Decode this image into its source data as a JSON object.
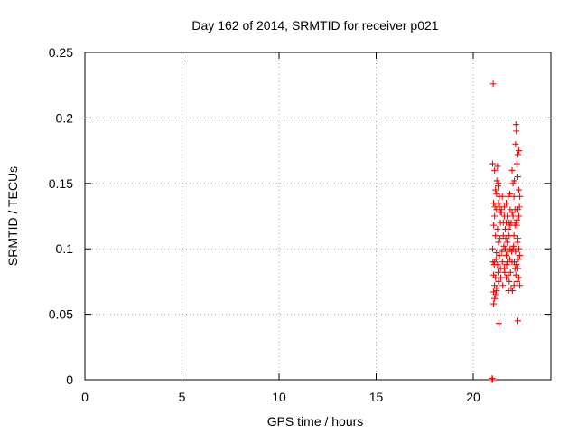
{
  "chart_data": {
    "type": "scatter",
    "title": "Day 162 of 2014, SRMTID for receiver p021",
    "xlabel": "GPS time / hours",
    "ylabel": "SRMTID / TECUs",
    "xlim": [
      0,
      24
    ],
    "ylim": [
      0,
      0.25
    ],
    "xticks": [
      0,
      5,
      10,
      15,
      20
    ],
    "xtick_labels": [
      "0",
      "5",
      "10",
      "15",
      "20"
    ],
    "yticks": [
      0,
      0.05,
      0.1,
      0.15,
      0.2,
      0.25
    ],
    "ytick_labels": [
      "0",
      "0.05",
      "0.1",
      "0.15",
      "0.2",
      "0.25"
    ],
    "grid": true,
    "marker": "+",
    "marker_color": "#ff0000",
    "series": [
      {
        "points": [
          [
            20.98,
            0.001
          ],
          [
            21.0,
            0.0
          ],
          [
            20.97,
            0.0
          ],
          [
            21.03,
            0.226
          ],
          [
            21.0,
            0.165
          ],
          [
            21.1,
            0.16
          ],
          [
            21.25,
            0.163
          ],
          [
            21.05,
            0.135
          ],
          [
            21.15,
            0.145
          ],
          [
            21.3,
            0.15
          ],
          [
            21.35,
            0.14
          ],
          [
            21.2,
            0.13
          ],
          [
            21.1,
            0.125
          ],
          [
            21.05,
            0.118
          ],
          [
            21.25,
            0.115
          ],
          [
            21.4,
            0.12
          ],
          [
            21.15,
            0.11
          ],
          [
            21.3,
            0.105
          ],
          [
            21.0,
            0.1
          ],
          [
            21.2,
            0.097
          ],
          [
            21.35,
            0.095
          ],
          [
            21.1,
            0.09
          ],
          [
            21.25,
            0.088
          ],
          [
            21.4,
            0.085
          ],
          [
            21.05,
            0.08
          ],
          [
            21.15,
            0.078
          ],
          [
            21.3,
            0.075
          ],
          [
            21.1,
            0.072
          ],
          [
            21.2,
            0.07
          ],
          [
            21.05,
            0.067
          ],
          [
            21.15,
            0.065
          ],
          [
            21.1,
            0.062
          ],
          [
            21.05,
            0.058
          ],
          [
            21.2,
            0.068
          ],
          [
            21.32,
            0.043
          ],
          [
            21.45,
            0.13
          ],
          [
            21.5,
            0.14
          ],
          [
            21.6,
            0.125
          ],
          [
            21.55,
            0.11
          ],
          [
            21.65,
            0.1
          ],
          [
            21.5,
            0.09
          ],
          [
            21.6,
            0.085
          ],
          [
            21.7,
            0.095
          ],
          [
            21.75,
            0.105
          ],
          [
            21.8,
            0.115
          ],
          [
            21.85,
            0.12
          ],
          [
            21.7,
            0.135
          ],
          [
            21.8,
            0.14
          ],
          [
            21.9,
            0.13
          ],
          [
            21.95,
            0.12
          ],
          [
            21.85,
            0.11
          ],
          [
            21.9,
            0.1
          ],
          [
            21.75,
            0.09
          ],
          [
            21.8,
            0.08
          ],
          [
            21.7,
            0.078
          ],
          [
            21.85,
            0.075
          ],
          [
            21.95,
            0.07
          ],
          [
            22.0,
            0.16
          ],
          [
            22.05,
            0.15
          ],
          [
            22.1,
            0.14
          ],
          [
            22.15,
            0.13
          ],
          [
            22.2,
            0.12
          ],
          [
            22.1,
            0.11
          ],
          [
            22.05,
            0.1
          ],
          [
            22.0,
            0.09
          ],
          [
            22.15,
            0.085
          ],
          [
            22.2,
            0.08
          ],
          [
            22.25,
            0.075
          ],
          [
            22.1,
            0.072
          ],
          [
            22.2,
            0.195
          ],
          [
            22.22,
            0.19
          ],
          [
            22.18,
            0.18
          ],
          [
            22.3,
            0.172
          ],
          [
            22.35,
            0.175
          ],
          [
            22.25,
            0.165
          ],
          [
            22.3,
            0.155
          ],
          [
            22.35,
            0.145
          ],
          [
            22.4,
            0.14
          ],
          [
            22.3,
            0.13
          ],
          [
            22.35,
            0.125
          ],
          [
            22.25,
            0.118
          ],
          [
            22.3,
            0.108
          ],
          [
            22.35,
            0.1
          ],
          [
            22.4,
            0.095
          ],
          [
            22.3,
            0.085
          ],
          [
            22.35,
            0.078
          ],
          [
            22.4,
            0.072
          ],
          [
            22.3,
            0.045
          ],
          [
            21.3,
            0.135
          ],
          [
            21.35,
            0.132
          ],
          [
            21.45,
            0.128
          ],
          [
            21.55,
            0.12
          ],
          [
            21.65,
            0.115
          ],
          [
            21.75,
            0.125
          ],
          [
            21.9,
            0.118
          ],
          [
            22.05,
            0.125
          ],
          [
            22.15,
            0.118
          ],
          [
            21.2,
            0.142
          ],
          [
            21.38,
            0.108
          ],
          [
            21.48,
            0.098
          ],
          [
            21.58,
            0.102
          ],
          [
            21.68,
            0.108
          ],
          [
            21.78,
            0.098
          ],
          [
            21.88,
            0.092
          ],
          [
            21.98,
            0.098
          ],
          [
            22.08,
            0.102
          ],
          [
            22.18,
            0.098
          ],
          [
            22.28,
            0.105
          ],
          [
            21.02,
            0.09
          ],
          [
            21.08,
            0.088
          ],
          [
            21.18,
            0.092
          ],
          [
            21.28,
            0.082
          ],
          [
            21.42,
            0.078
          ],
          [
            21.52,
            0.072
          ],
          [
            21.62,
            0.082
          ],
          [
            21.72,
            0.088
          ],
          [
            21.82,
            0.068
          ],
          [
            21.92,
            0.082
          ],
          [
            22.02,
            0.068
          ],
          [
            22.12,
            0.09
          ],
          [
            22.22,
            0.088
          ],
          [
            22.32,
            0.092
          ],
          [
            21.22,
            0.152
          ],
          [
            21.28,
            0.148
          ],
          [
            21.6,
            0.132
          ],
          [
            21.88,
            0.142
          ],
          [
            22.12,
            0.152
          ],
          [
            22.38,
            0.132
          ],
          [
            21.12,
            0.132
          ],
          [
            21.4,
            0.128
          ],
          [
            21.7,
            0.12
          ],
          [
            22.0,
            0.128
          ],
          [
            22.25,
            0.122
          ]
        ]
      }
    ]
  }
}
